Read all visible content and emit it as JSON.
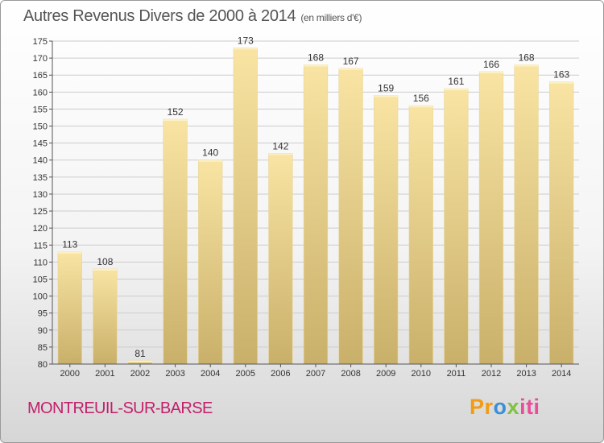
{
  "header": {
    "title": "Autres Revenus Divers de 2000 à 2014",
    "unit": "(en milliers d'€)"
  },
  "footer": {
    "city": "MONTREUIL-SUR-BARSE",
    "logo": [
      "Pr",
      "o",
      "x",
      "iti"
    ]
  },
  "colors": {
    "bar_top": "#f9e4a3",
    "bar_bottom": "#c9b06a",
    "grid": "#cccccc",
    "city": "#c41e6b"
  },
  "chart_data": {
    "type": "bar",
    "title": "Autres Revenus Divers de 2000 à 2014",
    "subtitle": "(en milliers d'€)",
    "xlabel": "",
    "ylabel": "",
    "categories": [
      "2000",
      "2001",
      "2002",
      "2003",
      "2004",
      "2005",
      "2006",
      "2007",
      "2008",
      "2009",
      "2010",
      "2011",
      "2012",
      "2013",
      "2014"
    ],
    "values": [
      113,
      108,
      81,
      152,
      140,
      173,
      142,
      168,
      167,
      159,
      156,
      161,
      166,
      168,
      163
    ],
    "ylim": [
      80,
      175
    ],
    "yticks": [
      80,
      85,
      90,
      95,
      100,
      105,
      110,
      115,
      120,
      125,
      130,
      135,
      140,
      145,
      150,
      155,
      160,
      165,
      170,
      175
    ],
    "grid": true,
    "legend": "none"
  }
}
